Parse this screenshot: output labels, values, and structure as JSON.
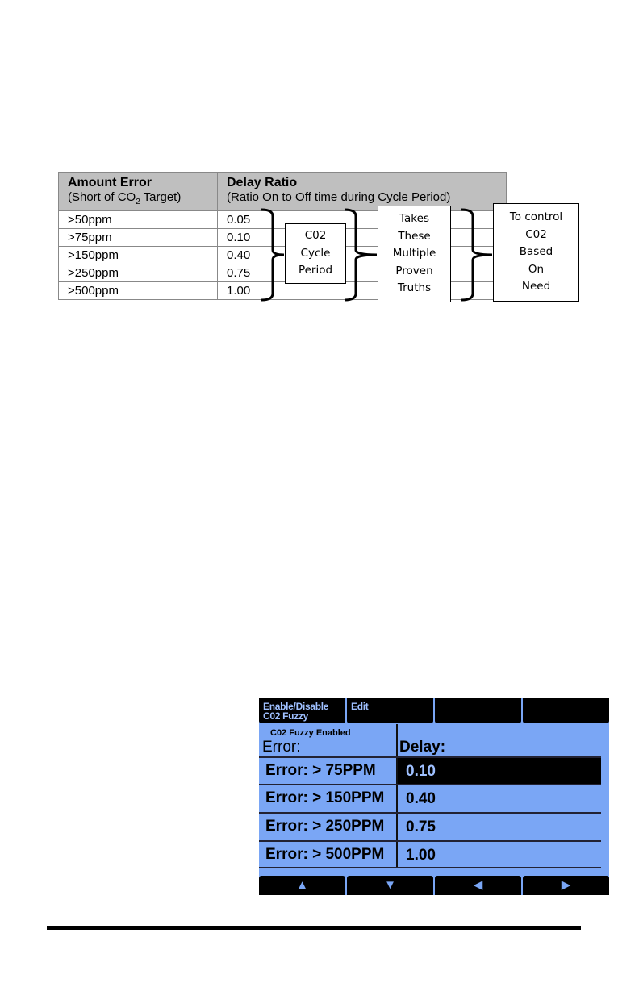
{
  "table": {
    "headers": [
      {
        "title": "Amount Error",
        "subtitle_pre": "(Short of CO",
        "subtitle_sub": "2",
        "subtitle_post": " Target)"
      },
      {
        "title": "Delay Ratio",
        "subtitle": "(Ratio On to Off time during Cycle Period)"
      }
    ],
    "rows": [
      [
        "&gt;50ppm",
        "0.05"
      ],
      [
        ">50ppm",
        "0.05"
      ],
      [
        ">75ppm",
        "0.10"
      ],
      [
        ">150ppm",
        "0.40"
      ],
      [
        ">250ppm",
        "0.75"
      ],
      [
        ">500ppm",
        "1.00"
      ]
    ]
  },
  "boxes": {
    "cycle": [
      "C02",
      "Cycle",
      "Period"
    ],
    "truths": [
      "Takes",
      "These",
      "Multiple",
      "Proven",
      "Truths"
    ],
    "control": [
      "To control",
      "C02",
      "Based",
      "On",
      "Need"
    ]
  },
  "screen": {
    "softkeys": [
      "Enable/Disable\nC02 Fuzzy",
      "Edit",
      "",
      ""
    ],
    "status": "C02 Fuzzy Enabled",
    "error_header": "Error:",
    "delay_header": "Delay:",
    "rows": [
      {
        "error": "Error: > 75PPM",
        "delay": "0.10",
        "selected": true
      },
      {
        "error": "Error: > 150PPM",
        "delay": "0.40"
      },
      {
        "error": "Error: > 250PPM",
        "delay": "0.75"
      },
      {
        "error": "Error: > 500PPM",
        "delay": "1.00"
      }
    ],
    "nav": [
      "up-arrow-icon",
      "down-arrow-icon",
      "left-arrow-icon",
      "right-arrow-icon"
    ],
    "colors": {
      "background": "#7aa6f5",
      "bar": "#000000",
      "softkey_text": "#9fc0ff"
    }
  }
}
